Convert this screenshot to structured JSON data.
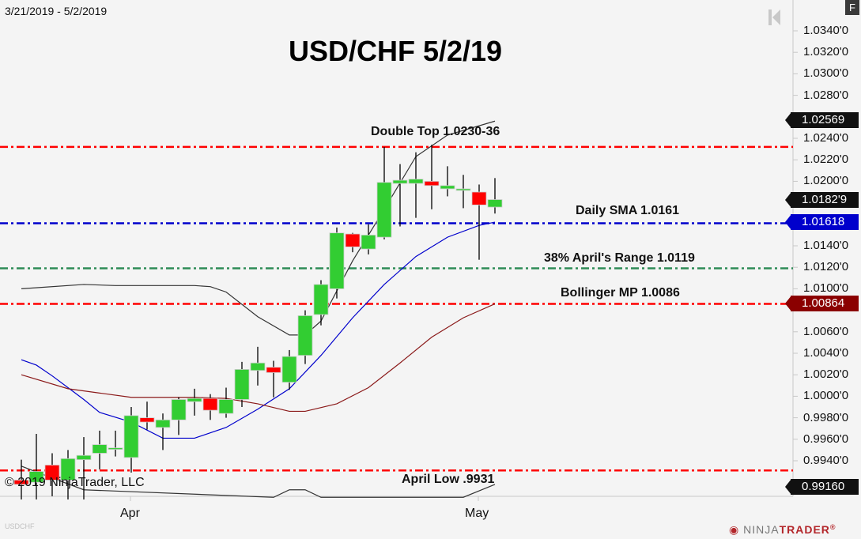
{
  "header": {
    "date_range": "3/21/2019 - 5/2/2019",
    "title": "USD/CHF 5/2/19",
    "f_button": "F"
  },
  "footer": {
    "copyright": "© 2019 NinjaTrader, LLC",
    "symbol": "USDCHF",
    "logo_ninja": "NINJA",
    "logo_trader": "TRADER",
    "logo_mark": "®"
  },
  "colors": {
    "background": "#f4f4f4",
    "up_candle": "#32cd32",
    "down_candle": "#ff0000",
    "sma_line": "#0000cc",
    "bollinger_upper": "#333333",
    "bollinger_mid": "#8b1a1a",
    "resistance": "#ff0000",
    "sma_level": "#0000cc",
    "fib_level": "#2e8b57"
  },
  "chart_data": {
    "type": "candlestick",
    "title": "USD/CHF 5/2/19",
    "subtitle": "3/21/2019 - 5/2/2019",
    "xlabel": "",
    "ylabel": "",
    "x_tick_labels": [
      "Apr",
      "May"
    ],
    "y_tick_labels": [
      "1.0340'0",
      "1.0320'0",
      "1.0300'0",
      "1.0280'0",
      "1.0240'0",
      "1.0220'0",
      "1.0200'0",
      "1.0140'0",
      "1.0120'0",
      "1.0100'0",
      "1.0060'0",
      "1.0040'0",
      "1.0020'0",
      "1.0000'0",
      "0.9980'0",
      "0.9960'0",
      "0.9940'0"
    ],
    "ylim": [
      0.9905,
      1.0355
    ],
    "grid": false,
    "price_tags": [
      {
        "label": "1.02569",
        "value": 1.02569,
        "color": "#111111"
      },
      {
        "label": "1.0182'9",
        "value": 1.01829,
        "color": "#111111"
      },
      {
        "label": "1.01618",
        "value": 1.01618,
        "color": "#0000cc"
      },
      {
        "label": "1.00864",
        "value": 1.00864,
        "color": "#8b0000"
      },
      {
        "label": "0.99160",
        "value": 0.9916,
        "color": "#111111"
      }
    ],
    "horizontal_lines": [
      {
        "label": "Double Top 1.0230-36",
        "value": 1.0232,
        "color": "#ff0000"
      },
      {
        "label": "Daily SMA 1.0161",
        "value": 1.0161,
        "color": "#0000cc"
      },
      {
        "label": "38% April's Range 1.0119",
        "value": 1.0119,
        "color": "#2e8b57"
      },
      {
        "label": "Bollinger MP 1.0086",
        "value": 1.0086,
        "color": "#ff0000"
      },
      {
        "label": "April Low .9931",
        "value": 0.9931,
        "color": "#ff0000"
      }
    ],
    "candles": [
      {
        "x": 27,
        "o": 0.9922,
        "h": 0.9941,
        "l": 0.9904,
        "c": 0.9918
      },
      {
        "x": 46,
        "o": 0.992,
        "h": 0.9965,
        "l": 0.9904,
        "c": 0.993
      },
      {
        "x": 66,
        "o": 0.9936,
        "h": 0.9947,
        "l": 0.9907,
        "c": 0.9922
      },
      {
        "x": 86,
        "o": 0.9922,
        "h": 0.995,
        "l": 0.9904,
        "c": 0.9942
      },
      {
        "x": 106,
        "o": 0.9941,
        "h": 0.9962,
        "l": 0.9904,
        "c": 0.9945
      },
      {
        "x": 126,
        "o": 0.9947,
        "h": 0.9968,
        "l": 0.9932,
        "c": 0.9955
      },
      {
        "x": 146,
        "o": 0.9952,
        "h": 0.9968,
        "l": 0.9944,
        "c": 0.9952
      },
      {
        "x": 166,
        "o": 0.9943,
        "h": 0.999,
        "l": 0.9929,
        "c": 0.9982
      },
      {
        "x": 186,
        "o": 0.998,
        "h": 0.9995,
        "l": 0.9969,
        "c": 0.9976
      },
      {
        "x": 206,
        "o": 0.9971,
        "h": 0.9984,
        "l": 0.995,
        "c": 0.9978
      },
      {
        "x": 226,
        "o": 0.9978,
        "h": 0.9999,
        "l": 0.9964,
        "c": 0.9997
      },
      {
        "x": 246,
        "o": 0.9995,
        "h": 1.0007,
        "l": 0.9982,
        "c": 0.9998
      },
      {
        "x": 266,
        "o": 0.9998,
        "h": 1.0002,
        "l": 0.9978,
        "c": 0.9987
      },
      {
        "x": 286,
        "o": 0.9984,
        "h": 1.0008,
        "l": 0.998,
        "c": 0.9997
      },
      {
        "x": 306,
        "o": 0.9997,
        "h": 1.0032,
        "l": 0.999,
        "c": 1.0025
      },
      {
        "x": 326,
        "o": 1.0024,
        "h": 1.0046,
        "l": 1.001,
        "c": 1.0031
      },
      {
        "x": 346,
        "o": 1.0027,
        "h": 1.0033,
        "l": 0.9999,
        "c": 1.0022
      },
      {
        "x": 366,
        "o": 1.0013,
        "h": 1.0043,
        "l": 1.0006,
        "c": 1.0037
      },
      {
        "x": 386,
        "o": 1.0038,
        "h": 1.008,
        "l": 1.003,
        "c": 1.0075
      },
      {
        "x": 406,
        "o": 1.0076,
        "h": 1.0108,
        "l": 1.0066,
        "c": 1.0104
      },
      {
        "x": 426,
        "o": 1.01,
        "h": 1.0157,
        "l": 1.0091,
        "c": 1.0152
      },
      {
        "x": 446,
        "o": 1.0151,
        "h": 1.0152,
        "l": 1.0134,
        "c": 1.0139
      },
      {
        "x": 466,
        "o": 1.0137,
        "h": 1.016,
        "l": 1.0132,
        "c": 1.015
      },
      {
        "x": 486,
        "o": 1.0148,
        "h": 1.0232,
        "l": 1.0146,
        "c": 1.0199
      },
      {
        "x": 506,
        "o": 1.0198,
        "h": 1.0216,
        "l": 1.0158,
        "c": 1.0201
      },
      {
        "x": 526,
        "o": 1.0198,
        "h": 1.0227,
        "l": 1.0166,
        "c": 1.0202
      },
      {
        "x": 546,
        "o": 1.02,
        "h": 1.0234,
        "l": 1.0174,
        "c": 1.0196
      },
      {
        "x": 566,
        "o": 1.0193,
        "h": 1.0214,
        "l": 1.0186,
        "c": 1.0196
      },
      {
        "x": 586,
        "o": 1.0193,
        "h": 1.0206,
        "l": 1.0175,
        "c": 1.0193
      },
      {
        "x": 606,
        "o": 1.019,
        "h": 1.0197,
        "l": 1.0127,
        "c": 1.0178
      },
      {
        "x": 626,
        "o": 1.0176,
        "h": 1.0203,
        "l": 1.017,
        "c": 1.0183
      }
    ],
    "series": [
      {
        "name": "Bollinger Upper",
        "color": "#333333",
        "points": [
          [
            27,
            1.01
          ],
          [
            106,
            1.0104
          ],
          [
            146,
            1.0103
          ],
          [
            246,
            1.0103
          ],
          [
            266,
            1.0102
          ],
          [
            286,
            1.0097
          ],
          [
            326,
            1.0074
          ],
          [
            366,
            1.0057
          ],
          [
            386,
            1.0057
          ],
          [
            406,
            1.007
          ],
          [
            446,
            1.0126
          ],
          [
            486,
            1.0174
          ],
          [
            526,
            1.0223
          ],
          [
            566,
            1.0243
          ],
          [
            626,
            1.0256
          ]
        ]
      },
      {
        "name": "SMA",
        "color": "#0000cc",
        "points": [
          [
            27,
            1.0034
          ],
          [
            46,
            1.0029
          ],
          [
            66,
            1.0019
          ],
          [
            86,
            1.0008
          ],
          [
            106,
            0.9997
          ],
          [
            126,
            0.9985
          ],
          [
            166,
            0.9976
          ],
          [
            206,
            0.9961
          ],
          [
            246,
            0.9961
          ],
          [
            286,
            0.9971
          ],
          [
            326,
            0.9988
          ],
          [
            366,
            1.0007
          ],
          [
            406,
            1.0038
          ],
          [
            446,
            1.0073
          ],
          [
            486,
            1.0104
          ],
          [
            526,
            1.013
          ],
          [
            566,
            1.0148
          ],
          [
            606,
            1.0159
          ],
          [
            626,
            1.0162
          ]
        ]
      },
      {
        "name": "Bollinger MP",
        "color": "#8b1a1a",
        "points": [
          [
            27,
            1.002
          ],
          [
            86,
            1.0007
          ],
          [
            166,
            0.9999
          ],
          [
            246,
            0.9999
          ],
          [
            286,
            0.9998
          ],
          [
            326,
            0.9993
          ],
          [
            366,
            0.9986
          ],
          [
            386,
            0.9986
          ],
          [
            426,
            0.9993
          ],
          [
            466,
            1.0008
          ],
          [
            506,
            1.0031
          ],
          [
            546,
            1.0055
          ],
          [
            586,
            1.0073
          ],
          [
            626,
            1.0086
          ]
        ]
      },
      {
        "name": "Bollinger Lower",
        "color": "#333333",
        "points": [
          [
            27,
            0.9935
          ],
          [
            66,
            0.9924
          ],
          [
            106,
            0.9913
          ],
          [
            346,
            0.9906
          ],
          [
            366,
            0.9913
          ],
          [
            386,
            0.9913
          ],
          [
            406,
            0.9906
          ],
          [
            586,
            0.9906
          ],
          [
            606,
            0.9912
          ],
          [
            626,
            0.9918
          ]
        ]
      }
    ]
  }
}
